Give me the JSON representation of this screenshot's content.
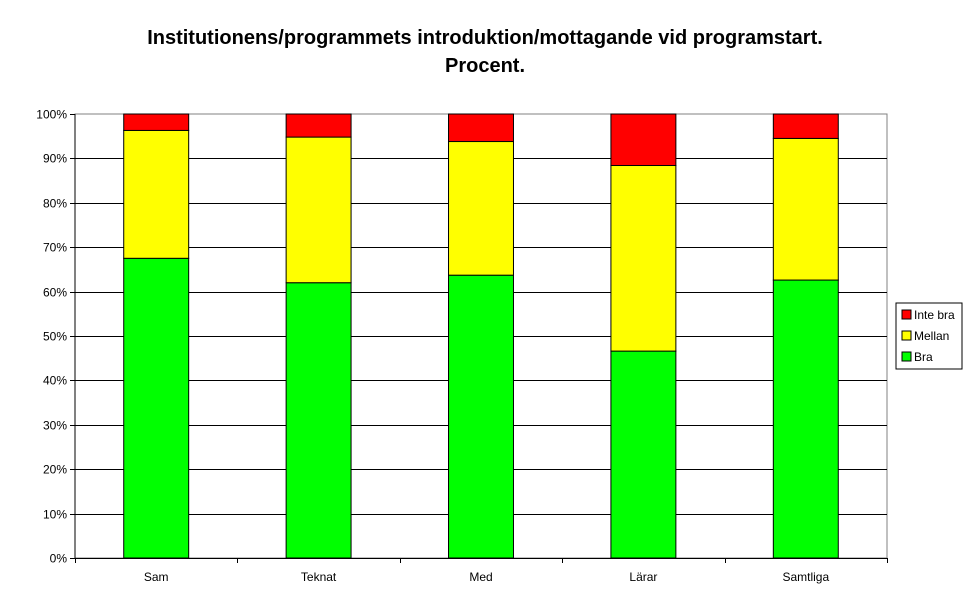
{
  "chart_data": {
    "type": "bar",
    "stacked": true,
    "title": "Institutionens/programmets introduktion/mottagande vid programstart.",
    "subtitle": "Procent.",
    "xlabel": "",
    "ylabel": "",
    "categories": [
      "Sam",
      "Teknat",
      "Med",
      "Lärar",
      "Samtliga"
    ],
    "series": [
      {
        "name": "Bra",
        "color": "#00ff00",
        "values": [
          67.5,
          62.0,
          63.7,
          46.6,
          62.6
        ]
      },
      {
        "name": "Mellan",
        "color": "#ffff00",
        "values": [
          28.8,
          32.8,
          30.1,
          41.8,
          31.9
        ]
      },
      {
        "name": "Inte bra",
        "color": "#ff0000",
        "values": [
          3.7,
          5.2,
          6.2,
          11.6,
          5.5
        ]
      }
    ],
    "ylim": [
      0,
      100
    ],
    "yticks": [
      "0%",
      "10%",
      "20%",
      "30%",
      "40%",
      "50%",
      "60%",
      "70%",
      "80%",
      "90%",
      "100%"
    ],
    "grid": true,
    "legend_position": "right"
  }
}
